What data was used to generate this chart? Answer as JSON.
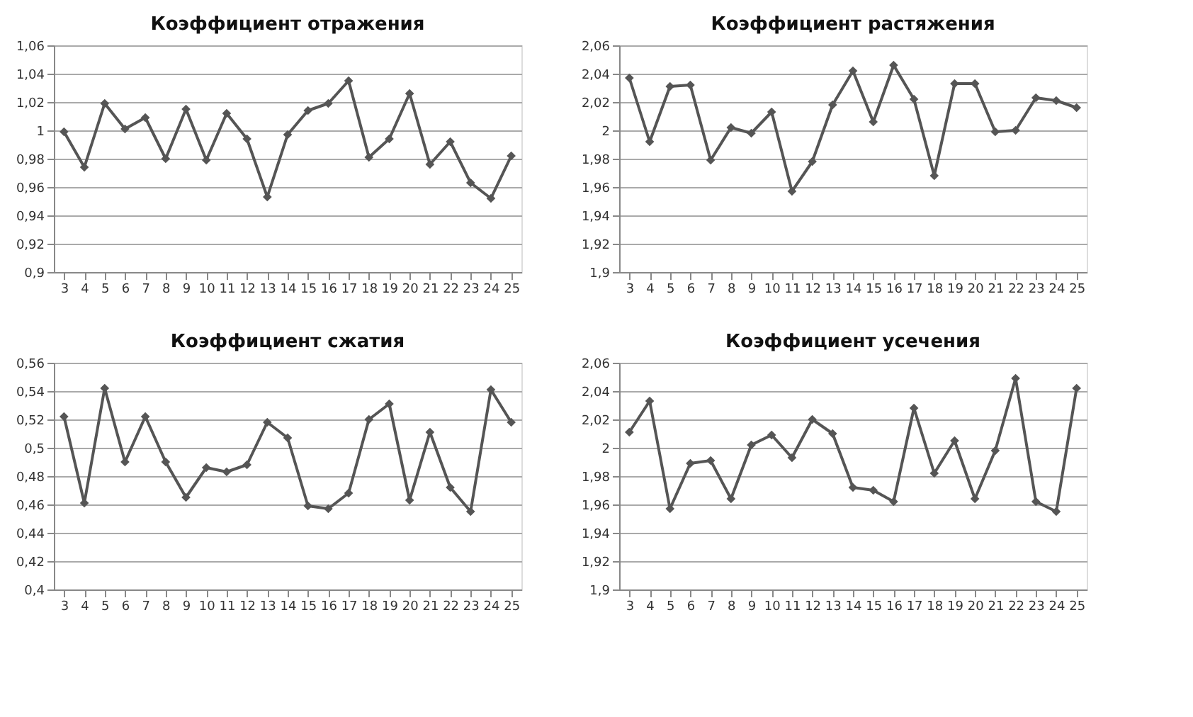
{
  "chart_data": [
    {
      "type": "line",
      "title": "Коэффициент отражения",
      "categories": [
        "3",
        "4",
        "5",
        "6",
        "7",
        "8",
        "9",
        "10",
        "11",
        "12",
        "13",
        "14",
        "15",
        "16",
        "17",
        "18",
        "19",
        "20",
        "21",
        "22",
        "23",
        "24",
        "25"
      ],
      "series": [
        {
          "color": "#555555",
          "values": [
            0.999,
            0.974,
            1.019,
            1.001,
            1.009,
            0.98,
            1.015,
            0.979,
            1.012,
            0.994,
            0.953,
            0.997,
            1.014,
            1.019,
            1.035,
            0.981,
            0.994,
            1.026,
            0.976,
            0.992,
            0.963,
            0.952,
            0.982
          ]
        }
      ],
      "ylim": [
        0.9,
        1.06
      ],
      "yticks": [
        {
          "value": 0.9,
          "label": "0,9"
        },
        {
          "value": 0.92,
          "label": "0,92"
        },
        {
          "value": 0.94,
          "label": "0,94"
        },
        {
          "value": 0.96,
          "label": "0,96"
        },
        {
          "value": 0.98,
          "label": "0,98"
        },
        1,
        {
          "value": 1.02,
          "label": "1,02"
        },
        {
          "value": 1.04,
          "label": "1,04"
        },
        {
          "value": 1.06,
          "label": "1,06"
        }
      ],
      "grid": "y",
      "marker": "diamond",
      "line_style": "solid"
    },
    {
      "type": "line",
      "title": "Коэффициент растяжения",
      "categories": [
        "3",
        "4",
        "5",
        "6",
        "7",
        "8",
        "9",
        "10",
        "11",
        "12",
        "13",
        "14",
        "15",
        "16",
        "17",
        "18",
        "19",
        "20",
        "21",
        "22",
        "23",
        "24",
        "25"
      ],
      "series": [
        {
          "color": "#555555",
          "values": [
            2.037,
            1.992,
            2.031,
            2.032,
            1.979,
            2.002,
            1.998,
            2.013,
            1.957,
            1.978,
            2.018,
            2.042,
            2.006,
            2.046,
            2.022,
            1.968,
            2.033,
            2.033,
            1.999,
            2.0,
            2.023,
            2.021,
            2.016
          ]
        }
      ],
      "ylim": [
        1.9,
        2.06
      ],
      "yticks": [
        {
          "value": 1.9,
          "label": "1,9"
        },
        {
          "value": 1.92,
          "label": "1,92"
        },
        {
          "value": 1.94,
          "label": "1,94"
        },
        {
          "value": 1.96,
          "label": "1,96"
        },
        {
          "value": 1.98,
          "label": "1,98"
        },
        2,
        {
          "value": 2.02,
          "label": "2,02"
        },
        {
          "value": 2.04,
          "label": "2,04"
        },
        {
          "value": 2.06,
          "label": "2,06"
        }
      ],
      "grid": "y",
      "marker": "diamond",
      "line_style": "solid"
    },
    {
      "type": "line",
      "title": "Коэффициент сжатия",
      "categories": [
        "3",
        "4",
        "5",
        "6",
        "7",
        "8",
        "9",
        "10",
        "11",
        "12",
        "13",
        "14",
        "15",
        "16",
        "17",
        "18",
        "19",
        "20",
        "21",
        "22",
        "23",
        "24",
        "25"
      ],
      "series": [
        {
          "color": "#555555",
          "values": [
            0.522,
            0.461,
            0.542,
            0.49,
            0.522,
            0.49,
            0.465,
            0.486,
            0.483,
            0.488,
            0.518,
            0.507,
            0.459,
            0.457,
            0.468,
            0.52,
            0.531,
            0.463,
            0.511,
            0.472,
            0.455,
            0.541,
            0.518
          ]
        }
      ],
      "ylim": [
        0.4,
        0.56
      ],
      "yticks": [
        {
          "value": 0.4,
          "label": "0,4"
        },
        {
          "value": 0.42,
          "label": "0,42"
        },
        {
          "value": 0.44,
          "label": "0,44"
        },
        {
          "value": 0.46,
          "label": "0,46"
        },
        {
          "value": 0.48,
          "label": "0,48"
        },
        {
          "value": 0.5,
          "label": "0,5"
        },
        {
          "value": 0.52,
          "label": "0,52"
        },
        {
          "value": 0.54,
          "label": "0,54"
        },
        {
          "value": 0.56,
          "label": "0,56"
        }
      ],
      "grid": "y",
      "marker": "diamond",
      "line_style": "solid"
    },
    {
      "type": "line",
      "title": "Коэффициент усечения",
      "categories": [
        "3",
        "4",
        "5",
        "6",
        "7",
        "8",
        "9",
        "10",
        "11",
        "12",
        "13",
        "14",
        "15",
        "16",
        "17",
        "18",
        "19",
        "20",
        "21",
        "22",
        "23",
        "24",
        "25"
      ],
      "series": [
        {
          "color": "#555555",
          "values": [
            2.011,
            2.033,
            1.957,
            1.989,
            1.991,
            1.964,
            2.002,
            2.009,
            1.993,
            2.02,
            2.01,
            1.972,
            1.97,
            1.962,
            2.028,
            1.982,
            2.005,
            1.964,
            1.998,
            2.049,
            1.962,
            1.955,
            2.042
          ]
        }
      ],
      "ylim": [
        1.9,
        2.06
      ],
      "yticks": [
        {
          "value": 1.9,
          "label": "1,9"
        },
        {
          "value": 1.92,
          "label": "1,92"
        },
        {
          "value": 1.94,
          "label": "1,94"
        },
        {
          "value": 1.96,
          "label": "1,96"
        },
        {
          "value": 1.98,
          "label": "1,98"
        },
        2,
        {
          "value": 2.02,
          "label": "2,02"
        },
        {
          "value": 2.04,
          "label": "2,04"
        },
        {
          "value": 2.06,
          "label": "2,06"
        }
      ],
      "grid": "y",
      "marker": "diamond",
      "line_style": "solid"
    }
  ]
}
